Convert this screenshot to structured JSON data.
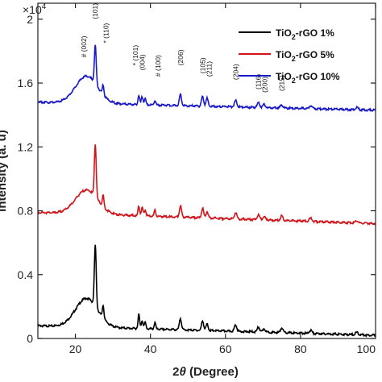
{
  "chart_data": {
    "type": "line",
    "title": "",
    "xlabel_pre": "2",
    "xlabel_theta": "θ",
    "xlabel_post": " (Degree)",
    "ylabel": "Intensity (a. u)",
    "y_multiplier_base": "×10",
    "y_multiplier_exp": "4",
    "xlim": [
      10,
      100
    ],
    "ylim": [
      0,
      2.1
    ],
    "x_ticks": [
      20,
      40,
      60,
      80,
      100
    ],
    "x_tick_labels": [
      "20",
      "40",
      "60",
      "80",
      "100"
    ],
    "y_ticks": [
      0,
      0.4,
      0.8,
      1.2,
      1.6,
      2
    ],
    "y_tick_labels": [
      "0",
      "0.4",
      "0.8",
      "1.2",
      "1.6",
      "2"
    ],
    "grid": false,
    "legend_position": "top-right",
    "series": [
      {
        "name_main": "TiO",
        "name_sub": "2",
        "name_rest": "-rGO 1%",
        "color": "#000000",
        "offset": 0,
        "baseline_start": 0.08,
        "baseline_end": 0.02,
        "hump_height": 0.18,
        "peak_heights": [
          0.38,
          0.08,
          0.09,
          0.05,
          0.04,
          0.04,
          0.07,
          0.06,
          0.04,
          0.04,
          0.03,
          0.02,
          0.03,
          0.02,
          0.015
        ]
      },
      {
        "name_main": "TiO",
        "name_sub": "2",
        "name_rest": "-rGO 5%",
        "color": "#d0141a",
        "offset": 0.76,
        "baseline_start": 0.03,
        "baseline_end": -0.04,
        "hump_height": 0.15,
        "peak_heights": [
          0.33,
          0.07,
          0.06,
          0.05,
          0.04,
          0.04,
          0.07,
          0.06,
          0.04,
          0.04,
          0.03,
          0.02,
          0.03,
          0.02,
          0.015
        ]
      },
      {
        "name_main": "TiO",
        "name_sub": "2",
        "name_rest": "-rGO 10%",
        "color": "#1818c8",
        "offset": 1.48,
        "baseline_start": 0.0,
        "baseline_end": -0.05,
        "hump_height": 0.17,
        "peak_heights": [
          0.24,
          0.06,
          0.06,
          0.05,
          0.04,
          0.03,
          0.07,
          0.06,
          0.05,
          0.04,
          0.03,
          0.02,
          0.02,
          0.02,
          0.015
        ]
      }
    ],
    "peak_positions": [
      25.3,
      27.4,
      36.9,
      37.8,
      38.6,
      41.2,
      48.0,
      53.9,
      55.1,
      62.7,
      68.8,
      70.3,
      75.0,
      82.7,
      95.0
    ],
    "peak_widths": [
      0.35,
      0.3,
      0.3,
      0.35,
      0.3,
      0.3,
      0.4,
      0.4,
      0.4,
      0.45,
      0.45,
      0.45,
      0.45,
      0.5,
      0.5
    ],
    "hump_center": 23,
    "hump_width": 4.2,
    "annotations": [
      {
        "label": "# (002)",
        "x": 22.2,
        "y": 1.76
      },
      {
        "label": "(101)",
        "x": 25.3,
        "y": 2.0
      },
      {
        "label": "* (110)",
        "x": 28.2,
        "y": 1.85
      },
      {
        "label": "* (101)",
        "x": 36.0,
        "y": 1.71
      },
      {
        "label": "(004)",
        "x": 37.8,
        "y": 1.68
      },
      {
        "label": "# (100)",
        "x": 42.0,
        "y": 1.64
      },
      {
        "label": "(206)",
        "x": 48.0,
        "y": 1.71
      },
      {
        "label": "(105)",
        "x": 53.9,
        "y": 1.66
      },
      {
        "label": "(211)",
        "x": 55.6,
        "y": 1.64
      },
      {
        "label": "(204)",
        "x": 62.7,
        "y": 1.62
      },
      {
        "label": "(116)",
        "x": 68.8,
        "y": 1.56
      },
      {
        "label": "(200)",
        "x": 70.5,
        "y": 1.54
      },
      {
        "label": "(215)",
        "x": 75.0,
        "y": 1.55
      }
    ]
  }
}
